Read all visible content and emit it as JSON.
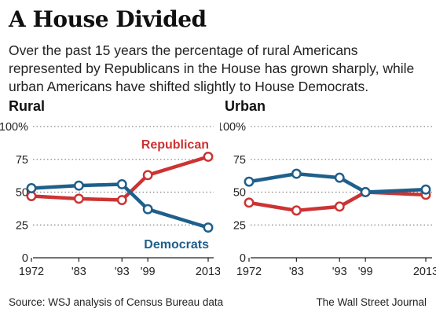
{
  "header": {
    "title": "A House Divided",
    "subtitle": "Over the past 15 years the percentage of rural Americans represented by Republicans in the House has grown sharply, while urban Americans have shifted slightly to House Democrats."
  },
  "footer": {
    "source": "Source: WSJ analysis of Census Bureau data",
    "credit": "The Wall Street Journal"
  },
  "colors": {
    "republican": "#cc3333",
    "democrat": "#1f5f8b",
    "grid": "#888888"
  },
  "chart_data": [
    {
      "type": "line",
      "title": "Rural",
      "x": [
        1972,
        1983,
        1993,
        1999,
        2013
      ],
      "xtick_labels": [
        "1972",
        "'83",
        "'93",
        "'99",
        "2013"
      ],
      "ylim": [
        0,
        100
      ],
      "yticks": [
        0,
        25,
        50,
        75,
        100
      ],
      "ytick_labels": [
        "0",
        "25",
        "50",
        "75",
        "100%"
      ],
      "grid": true,
      "series": [
        {
          "name": "Republican",
          "color": "#cc3333",
          "values": [
            47,
            45,
            44,
            63,
            77
          ]
        },
        {
          "name": "Democrats",
          "color": "#1f5f8b",
          "values": [
            53,
            55,
            56,
            37,
            23
          ]
        }
      ]
    },
    {
      "type": "line",
      "title": "Urban",
      "x": [
        1972,
        1983,
        1993,
        1999,
        2013
      ],
      "xtick_labels": [
        "1972",
        "'83",
        "'93",
        "'99",
        "2013"
      ],
      "ylim": [
        0,
        100
      ],
      "yticks": [
        0,
        25,
        50,
        75,
        100
      ],
      "ytick_labels": [
        "0",
        "25",
        "50",
        "75",
        "100%"
      ],
      "grid": true,
      "series": [
        {
          "color": "#cc3333",
          "values": [
            42,
            36,
            39,
            50,
            48
          ]
        },
        {
          "color": "#1f5f8b",
          "values": [
            58,
            64,
            61,
            50,
            52
          ]
        }
      ]
    }
  ]
}
